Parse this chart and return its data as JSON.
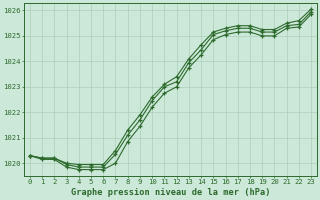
{
  "x": [
    0,
    1,
    2,
    3,
    4,
    5,
    6,
    7,
    8,
    9,
    10,
    11,
    12,
    13,
    14,
    15,
    16,
    17,
    18,
    19,
    20,
    21,
    22,
    23
  ],
  "line_top": [
    1020.3,
    1020.2,
    1020.2,
    1020.0,
    1019.95,
    1019.95,
    1019.95,
    1020.5,
    1021.3,
    1021.9,
    1022.6,
    1023.1,
    1023.4,
    1024.1,
    1024.65,
    1025.15,
    1025.3,
    1025.4,
    1025.4,
    1025.25,
    1025.25,
    1025.5,
    1025.6,
    1026.05
  ],
  "line_mid": [
    1020.3,
    1020.2,
    1020.2,
    1019.95,
    1019.85,
    1019.85,
    1019.85,
    1020.35,
    1021.1,
    1021.7,
    1022.45,
    1023.0,
    1023.2,
    1023.95,
    1024.45,
    1025.05,
    1025.2,
    1025.3,
    1025.3,
    1025.15,
    1025.15,
    1025.4,
    1025.45,
    1025.95
  ],
  "line_bot": [
    1020.3,
    1020.15,
    1020.15,
    1019.85,
    1019.75,
    1019.75,
    1019.75,
    1020.0,
    1020.85,
    1021.45,
    1022.2,
    1022.75,
    1023.0,
    1023.75,
    1024.25,
    1024.85,
    1025.05,
    1025.15,
    1025.15,
    1025.0,
    1025.0,
    1025.3,
    1025.35,
    1025.85
  ],
  "ylim": [
    1019.5,
    1026.3
  ],
  "yticks": [
    1020,
    1021,
    1022,
    1023,
    1024,
    1025,
    1026
  ],
  "xlim": [
    -0.5,
    23.5
  ],
  "xlabel": "Graphe pression niveau de la mer (hPa)",
  "line_color": "#2d6a2d",
  "bg_color": "#cce8d8",
  "grid_color": "#aacfba",
  "marker": "+",
  "marker_size": 3.5,
  "line_width": 0.8,
  "tick_fontsize": 5.2,
  "xlabel_fontsize": 6.2
}
